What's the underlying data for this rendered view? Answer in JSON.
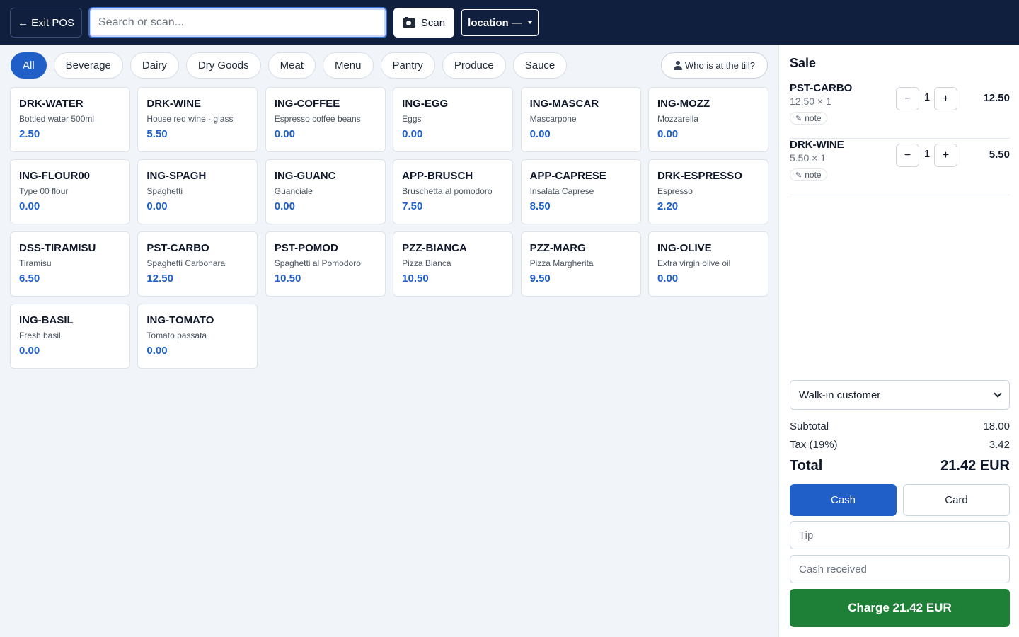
{
  "topbar": {
    "exit_label": "← Exit POS",
    "search_placeholder": "Search or scan...",
    "scan_label": "Scan",
    "location_label": "location —"
  },
  "categories": [
    "All",
    "Beverage",
    "Dairy",
    "Dry Goods",
    "Meat",
    "Menu",
    "Pantry",
    "Produce",
    "Sauce"
  ],
  "active_category": "All",
  "till_label": "Who is at the till?",
  "products": [
    {
      "sku": "DRK-WATER",
      "name": "Bottled water 500ml",
      "price": "2.50"
    },
    {
      "sku": "DRK-WINE",
      "name": "House red wine - glass",
      "price": "5.50"
    },
    {
      "sku": "ING-COFFEE",
      "name": "Espresso coffee beans",
      "price": "0.00"
    },
    {
      "sku": "ING-EGG",
      "name": "Eggs",
      "price": "0.00"
    },
    {
      "sku": "ING-MASCAR",
      "name": "Mascarpone",
      "price": "0.00"
    },
    {
      "sku": "ING-MOZZ",
      "name": "Mozzarella",
      "price": "0.00"
    },
    {
      "sku": "ING-FLOUR00",
      "name": "Type 00 flour",
      "price": "0.00"
    },
    {
      "sku": "ING-SPAGH",
      "name": "Spaghetti",
      "price": "0.00"
    },
    {
      "sku": "ING-GUANC",
      "name": "Guanciale",
      "price": "0.00"
    },
    {
      "sku": "APP-BRUSCH",
      "name": "Bruschetta al pomodoro",
      "price": "7.50"
    },
    {
      "sku": "APP-CAPRESE",
      "name": "Insalata Caprese",
      "price": "8.50"
    },
    {
      "sku": "DRK-ESPRESSO",
      "name": "Espresso",
      "price": "2.20"
    },
    {
      "sku": "DSS-TIRAMISU",
      "name": "Tiramisu",
      "price": "6.50"
    },
    {
      "sku": "PST-CARBO",
      "name": "Spaghetti Carbonara",
      "price": "12.50"
    },
    {
      "sku": "PST-POMOD",
      "name": "Spaghetti al Pomodoro",
      "price": "10.50"
    },
    {
      "sku": "PZZ-BIANCA",
      "name": "Pizza Bianca",
      "price": "10.50"
    },
    {
      "sku": "PZZ-MARG",
      "name": "Pizza Margherita",
      "price": "9.50"
    },
    {
      "sku": "ING-OLIVE",
      "name": "Extra virgin olive oil",
      "price": "0.00"
    },
    {
      "sku": "ING-BASIL",
      "name": "Fresh basil",
      "price": "0.00"
    },
    {
      "sku": "ING-TOMATO",
      "name": "Tomato passata",
      "price": "0.00"
    }
  ],
  "sale": {
    "title": "Sale",
    "lines": [
      {
        "sku": "PST-CARBO",
        "detail": "12.50 × 1",
        "note_label": "note",
        "minus": "−",
        "qty": "1",
        "plus": "+",
        "total": "12.50"
      },
      {
        "sku": "DRK-WINE",
        "detail": "5.50 × 1",
        "note_label": "note",
        "minus": "−",
        "qty": "1",
        "plus": "+",
        "total": "5.50"
      }
    ],
    "customer": "Walk-in customer",
    "subtotal_label": "Subtotal",
    "subtotal_value": "18.00",
    "tax_label": "Tax (19%)",
    "tax_value": "3.42",
    "total_label": "Total",
    "total_value": "21.42 EUR",
    "cash_label": "Cash",
    "card_label": "Card",
    "tip_placeholder": "Tip",
    "cash_received_placeholder": "Cash received",
    "charge_label": "Charge 21.42 EUR"
  },
  "colors": {
    "topbar": "#0f1f3d",
    "accent": "#1f5fc7",
    "charge": "#1e8037"
  }
}
